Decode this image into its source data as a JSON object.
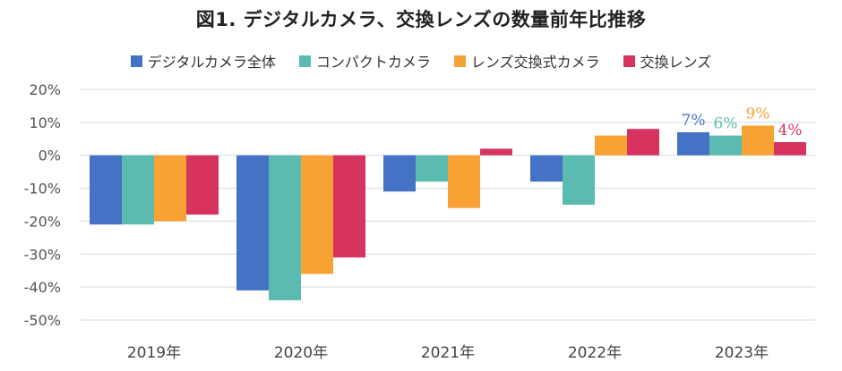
{
  "chart_data": {
    "type": "bar",
    "title": "図1. デジタルカメラ、交換レンズの数量前年比推移",
    "xlabel": "",
    "ylabel": "",
    "categories": [
      "2019年",
      "2020年",
      "2021年",
      "2022年",
      "2023年"
    ],
    "ylim": [
      -50,
      20
    ],
    "yticks": [
      20,
      10,
      0,
      -10,
      -20,
      -30,
      -40,
      -50
    ],
    "ytick_labels": [
      "20%",
      "10%",
      "0%",
      "-10%",
      "-20%",
      "-30%",
      "-40%",
      "-50%"
    ],
    "grid": true,
    "legend_position": "top",
    "series": [
      {
        "name": "デジタルカメラ全体",
        "color": "#4472C4",
        "values": [
          -21,
          -41,
          -11,
          -8,
          7
        ]
      },
      {
        "name": "コンパクトカメラ",
        "color": "#5BBBB0",
        "values": [
          -21,
          -44,
          -8,
          -15,
          6
        ]
      },
      {
        "name": "レンズ交換式カメラ",
        "color": "#F7A233",
        "values": [
          -20,
          -36,
          -16,
          6,
          9
        ]
      },
      {
        "name": "交換レンズ",
        "color": "#D6335F",
        "values": [
          -18,
          -31,
          2,
          8,
          4
        ]
      }
    ],
    "data_labels": {
      "category": "2023年",
      "labels": [
        "7%",
        "6%",
        "9%",
        "4%"
      ]
    }
  }
}
